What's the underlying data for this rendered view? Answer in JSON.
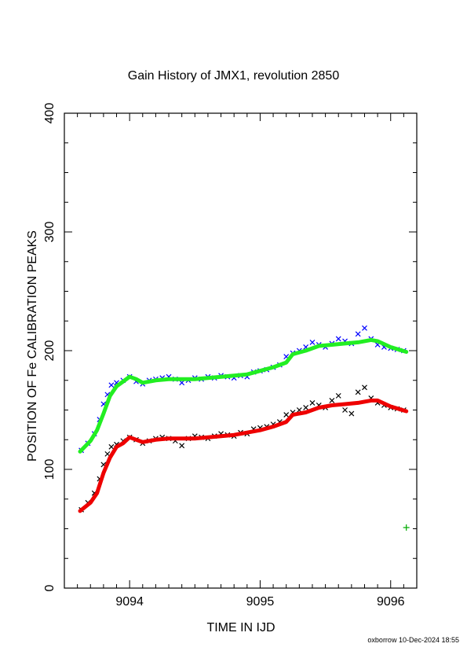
{
  "chart_data": {
    "type": "scatter",
    "title": "Gain History of JMX1, revolution 2850",
    "xlabel": "TIME IN IJD",
    "ylabel": "POSITION OF Fe CALIBRATION PEAKS",
    "xlim": [
      9093.5,
      9096.2
    ],
    "ylim": [
      0,
      400
    ],
    "xticks": [
      9094,
      9095,
      9096
    ],
    "xtick_labels": [
      "9094",
      "9095",
      "9096"
    ],
    "yticks": [
      0,
      100,
      200,
      300,
      400
    ],
    "ytick_labels": [
      "0",
      "100",
      "200",
      "300",
      "400"
    ],
    "grid": false,
    "series": [
      {
        "color": "#0000ff",
        "marker": "x",
        "x": [
          9093.63,
          9093.68,
          9093.73,
          9093.77,
          9093.8,
          9093.83,
          9093.86,
          9093.9,
          9093.95,
          9094.0,
          9094.05,
          9094.1,
          9094.15,
          9094.2,
          9094.25,
          9094.3,
          9094.35,
          9094.4,
          9094.45,
          9094.5,
          9094.55,
          9094.6,
          9094.65,
          9094.7,
          9094.75,
          9094.8,
          9094.85,
          9094.9,
          9094.95,
          9095.0,
          9095.05,
          9095.1,
          9095.15,
          9095.2,
          9095.25,
          9095.3,
          9095.35,
          9095.4,
          9095.45,
          9095.5,
          9095.55,
          9095.6,
          9095.65,
          9095.7,
          9095.75,
          9095.8,
          9095.85,
          9095.9,
          9095.95,
          9096.0,
          9096.05,
          9096.1
        ],
        "y": [
          116,
          122,
          130,
          142,
          155,
          163,
          171,
          173,
          175,
          178,
          174,
          172,
          175,
          176,
          177,
          178,
          176,
          173,
          175,
          177,
          176,
          178,
          177,
          179,
          178,
          177,
          179,
          178,
          182,
          183,
          184,
          186,
          188,
          195,
          198,
          200,
          203,
          207,
          205,
          203,
          206,
          210,
          208,
          206,
          214,
          219,
          210,
          205,
          203,
          202,
          201,
          200
        ]
      },
      {
        "color": "#000000",
        "marker": "x",
        "x": [
          9093.63,
          9093.68,
          9093.73,
          9093.77,
          9093.8,
          9093.83,
          9093.86,
          9093.9,
          9093.95,
          9094.0,
          9094.05,
          9094.1,
          9094.15,
          9094.2,
          9094.25,
          9094.3,
          9094.35,
          9094.4,
          9094.45,
          9094.5,
          9094.55,
          9094.6,
          9094.65,
          9094.7,
          9094.75,
          9094.8,
          9094.85,
          9094.9,
          9094.95,
          9095.0,
          9095.05,
          9095.1,
          9095.15,
          9095.2,
          9095.25,
          9095.3,
          9095.35,
          9095.4,
          9095.45,
          9095.5,
          9095.55,
          9095.6,
          9095.65,
          9095.7,
          9095.75,
          9095.8,
          9095.85,
          9095.9,
          9095.95,
          9096.0,
          9096.05,
          9096.1
        ],
        "y": [
          66,
          72,
          80,
          92,
          104,
          113,
          119,
          121,
          124,
          127,
          125,
          122,
          124,
          126,
          127,
          126,
          124,
          120,
          126,
          128,
          127,
          126,
          128,
          130,
          129,
          128,
          131,
          130,
          134,
          135,
          136,
          138,
          140,
          146,
          148,
          150,
          152,
          156,
          154,
          152,
          158,
          162,
          150,
          147,
          165,
          169,
          160,
          156,
          154,
          152,
          151,
          150
        ]
      },
      {
        "color": "#22ee22",
        "marker": "line",
        "x": [
          9093.62,
          9093.7,
          9093.75,
          9093.8,
          9093.85,
          9093.9,
          9093.95,
          9094.0,
          9094.05,
          9094.1,
          9094.2,
          9094.3,
          9094.4,
          9094.5,
          9094.6,
          9094.7,
          9094.8,
          9094.9,
          9095.0,
          9095.1,
          9095.15,
          9095.2,
          9095.25,
          9095.35,
          9095.45,
          9095.55,
          9095.65,
          9095.75,
          9095.85,
          9095.9,
          9096.0,
          9096.12
        ],
        "y": [
          115,
          124,
          133,
          147,
          162,
          170,
          174,
          178,
          176,
          173,
          175,
          176,
          176,
          176,
          177,
          178,
          179,
          180,
          183,
          186,
          188,
          190,
          197,
          200,
          204,
          205,
          206,
          207,
          209,
          208,
          203,
          199
        ]
      },
      {
        "color": "#ee0000",
        "marker": "line",
        "x": [
          9093.62,
          9093.7,
          9093.75,
          9093.8,
          9093.85,
          9093.9,
          9093.95,
          9094.0,
          9094.05,
          9094.1,
          9094.2,
          9094.3,
          9094.4,
          9094.5,
          9094.6,
          9094.7,
          9094.8,
          9094.9,
          9095.0,
          9095.1,
          9095.15,
          9095.2,
          9095.25,
          9095.35,
          9095.45,
          9095.55,
          9095.65,
          9095.75,
          9095.85,
          9095.9,
          9096.0,
          9096.12
        ],
        "y": [
          65,
          72,
          80,
          97,
          110,
          119,
          122,
          127,
          125,
          123,
          125,
          126,
          126,
          126,
          127,
          128,
          129,
          131,
          133,
          136,
          138,
          140,
          146,
          148,
          152,
          154,
          155,
          156,
          158,
          158,
          153,
          149
        ]
      },
      {
        "color": "#00aa00",
        "marker": "+",
        "x": [
          9096.12
        ],
        "y": [
          51
        ]
      }
    ]
  },
  "footer": "oxborrow 10-Dec-2024 18:55"
}
